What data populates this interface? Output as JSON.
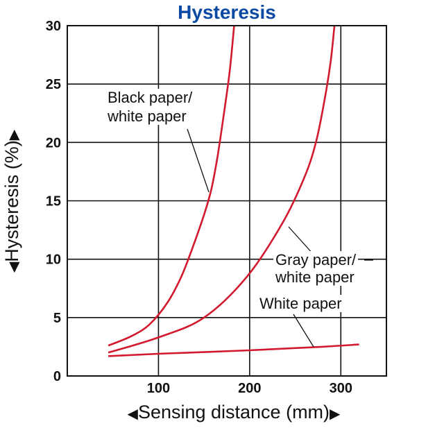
{
  "chart_data": {
    "type": "line",
    "title": "Hysteresis",
    "xlabel": "Sensing distance (mm)",
    "ylabel": "Hysteresis (%)",
    "xlim": [
      0,
      350
    ],
    "ylim": [
      0,
      30
    ],
    "xticks": [
      100,
      200,
      300
    ],
    "yticks": [
      0,
      5,
      10,
      15,
      20,
      25,
      30
    ],
    "grid": true,
    "series": [
      {
        "name": "Black paper/ white paper",
        "label_lines": [
          "Black paper/",
          "white paper"
        ],
        "color": "#d2192d",
        "points": [
          [
            45,
            2.6
          ],
          [
            70,
            3.4
          ],
          [
            90,
            4.4
          ],
          [
            110,
            6.3
          ],
          [
            125,
            8.5
          ],
          [
            137,
            10.9
          ],
          [
            150,
            13.8
          ],
          [
            158,
            16.0
          ],
          [
            165,
            18.9
          ],
          [
            172,
            22.6
          ],
          [
            178,
            26.0
          ],
          [
            183,
            30.0
          ]
        ]
      },
      {
        "name": "Gray paper/ white paper",
        "label_lines": [
          "Gray paper/",
          "white paper"
        ],
        "color": "#d2192d",
        "points": [
          [
            45,
            2.0
          ],
          [
            100,
            3.3
          ],
          [
            150,
            5.0
          ],
          [
            197,
            8.5
          ],
          [
            236,
            13.1
          ],
          [
            260,
            17.0
          ],
          [
            273,
            20.1
          ],
          [
            283,
            24.0
          ],
          [
            289,
            27.0
          ],
          [
            293,
            30.0
          ]
        ]
      },
      {
        "name": "White paper",
        "label_lines": [
          "White paper"
        ],
        "color": "#d2192d",
        "points": [
          [
            45,
            1.7
          ],
          [
            100,
            1.9
          ],
          [
            200,
            2.2
          ],
          [
            280,
            2.5
          ],
          [
            320,
            2.7
          ]
        ]
      }
    ]
  }
}
